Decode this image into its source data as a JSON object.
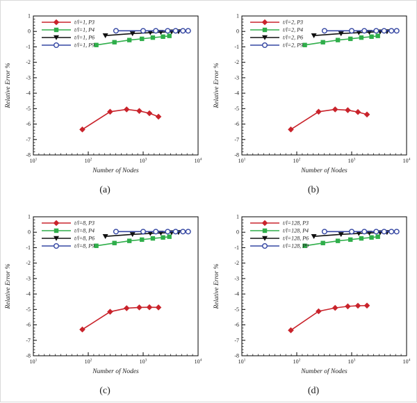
{
  "figure": {
    "background": "#ffffff",
    "text_color": "#1a1a1a"
  },
  "colors": {
    "P3": "#c9232b",
    "P4": "#2fae4a",
    "P6": "#101010",
    "P9": "#3446a2"
  },
  "markers": {
    "P3": "diamond",
    "P4": "square",
    "P6": "triangle-down",
    "P9": "circle-open"
  },
  "axes": {
    "xlabel": "Number of Nodes",
    "ylabel": "Relative Error %",
    "x_scale": "log",
    "x_ticks_exponents": [
      1,
      2,
      3,
      4
    ],
    "x_tick_labels": [
      "10¹",
      "10²",
      "10³",
      "10⁴"
    ],
    "xlim": [
      10,
      10000
    ],
    "ylim": [
      -8,
      1
    ],
    "y_ticks": [
      1,
      0,
      -1,
      -2,
      -3,
      -4,
      -5,
      -6,
      -7,
      -8
    ],
    "grid": "off",
    "legend_position": "upper-left-inside"
  },
  "chart_data": [
    {
      "id": "a",
      "caption": "(a)",
      "type": "line",
      "x_scale": "log",
      "xlabel": "Number of Nodes",
      "ylabel": "Relative Error %",
      "xlim": [
        10,
        10000
      ],
      "ylim": [
        -8,
        1
      ],
      "series": [
        {
          "name": "t/l=1, P3",
          "key": "P3",
          "x": [
            78,
            250,
            500,
            850,
            1300,
            1900
          ],
          "y": [
            -6.35,
            -5.2,
            -5.05,
            -5.15,
            -5.3,
            -5.52
          ]
        },
        {
          "name": "t/l=1, P4",
          "key": "P4",
          "x": [
            140,
            300,
            560,
            950,
            1500,
            2300,
            3000
          ],
          "y": [
            -0.88,
            -0.7,
            -0.56,
            -0.48,
            -0.4,
            -0.34,
            -0.29
          ]
        },
        {
          "name": "t/l=1, P6",
          "key": "P6",
          "x": [
            205,
            640,
            1350,
            2100,
            3300,
            4400
          ],
          "y": [
            -0.27,
            -0.14,
            -0.08,
            -0.05,
            -0.02,
            -0.01
          ]
        },
        {
          "name": "t/l=1, P9",
          "key": "P9",
          "x": [
            320,
            1000,
            1700,
            2800,
            3900,
            5300,
            6600
          ],
          "y": [
            0.04,
            0.04,
            0.04,
            0.04,
            0.04,
            0.04,
            0.04
          ]
        }
      ]
    },
    {
      "id": "b",
      "caption": "(b)",
      "type": "line",
      "x_scale": "log",
      "xlabel": "Number of Nodes",
      "ylabel": "Relative Error %",
      "xlim": [
        10,
        10000
      ],
      "ylim": [
        -8,
        1
      ],
      "series": [
        {
          "name": "t/l=2, P3",
          "key": "P3",
          "x": [
            78,
            250,
            500,
            850,
            1300,
            1900
          ],
          "y": [
            -6.35,
            -5.2,
            -5.05,
            -5.1,
            -5.22,
            -5.38
          ]
        },
        {
          "name": "t/l=2, P4",
          "key": "P4",
          "x": [
            140,
            300,
            560,
            950,
            1500,
            2300,
            3000
          ],
          "y": [
            -0.88,
            -0.7,
            -0.56,
            -0.48,
            -0.4,
            -0.34,
            -0.29
          ]
        },
        {
          "name": "t/l=2, P6",
          "key": "P6",
          "x": [
            205,
            640,
            1350,
            2100,
            3300,
            4400
          ],
          "y": [
            -0.27,
            -0.14,
            -0.08,
            -0.05,
            -0.02,
            -0.01
          ]
        },
        {
          "name": "t/l=2, P9",
          "key": "P9",
          "x": [
            320,
            1000,
            1700,
            2800,
            3900,
            5300,
            6600
          ],
          "y": [
            0.04,
            0.04,
            0.04,
            0.04,
            0.04,
            0.04,
            0.04
          ]
        }
      ]
    },
    {
      "id": "c",
      "caption": "(c)",
      "type": "line",
      "x_scale": "log",
      "xlabel": "Number of Nodes",
      "ylabel": "Relative Error %",
      "xlim": [
        10,
        10000
      ],
      "ylim": [
        -8,
        1
      ],
      "series": [
        {
          "name": "t/l=8, P3",
          "key": "P3",
          "x": [
            78,
            250,
            500,
            850,
            1300,
            1900
          ],
          "y": [
            -6.3,
            -5.15,
            -4.92,
            -4.87,
            -4.86,
            -4.87
          ]
        },
        {
          "name": "t/l=8, P4",
          "key": "P4",
          "x": [
            140,
            300,
            560,
            950,
            1500,
            2300,
            3000
          ],
          "y": [
            -0.88,
            -0.7,
            -0.56,
            -0.48,
            -0.4,
            -0.34,
            -0.29
          ]
        },
        {
          "name": "t/l=8, P6",
          "key": "P6",
          "x": [
            205,
            640,
            1350,
            2100,
            3300,
            4400
          ],
          "y": [
            -0.27,
            -0.14,
            -0.08,
            -0.05,
            -0.02,
            -0.01
          ]
        },
        {
          "name": "t/l=8, P9",
          "key": "P9",
          "x": [
            320,
            1000,
            1700,
            2800,
            3900,
            5300,
            6600
          ],
          "y": [
            0.04,
            0.04,
            0.04,
            0.04,
            0.04,
            0.04,
            0.04
          ]
        }
      ]
    },
    {
      "id": "d",
      "caption": "(d)",
      "type": "line",
      "x_scale": "log",
      "xlabel": "Number of Nodes",
      "ylabel": "Relative Error %",
      "xlim": [
        10,
        10000
      ],
      "ylim": [
        -8,
        1
      ],
      "series": [
        {
          "name": "t/l=128, P3",
          "key": "P3",
          "x": [
            78,
            250,
            500,
            850,
            1300,
            1900
          ],
          "y": [
            -6.35,
            -5.12,
            -4.9,
            -4.8,
            -4.76,
            -4.75
          ]
        },
        {
          "name": "t/l=128, P4",
          "key": "P4",
          "x": [
            140,
            300,
            560,
            950,
            1500,
            2300,
            3000
          ],
          "y": [
            -0.88,
            -0.7,
            -0.56,
            -0.48,
            -0.4,
            -0.34,
            -0.29
          ]
        },
        {
          "name": "t/l=128, P6",
          "key": "P6",
          "x": [
            205,
            640,
            1350,
            2100,
            3300,
            4400
          ],
          "y": [
            -0.27,
            -0.14,
            -0.08,
            -0.05,
            -0.02,
            -0.01
          ]
        },
        {
          "name": "t/l=128, P9",
          "key": "P9",
          "x": [
            320,
            1000,
            1700,
            2800,
            3900,
            5300,
            6600
          ],
          "y": [
            0.04,
            0.04,
            0.04,
            0.04,
            0.04,
            0.04,
            0.04
          ]
        }
      ]
    }
  ]
}
